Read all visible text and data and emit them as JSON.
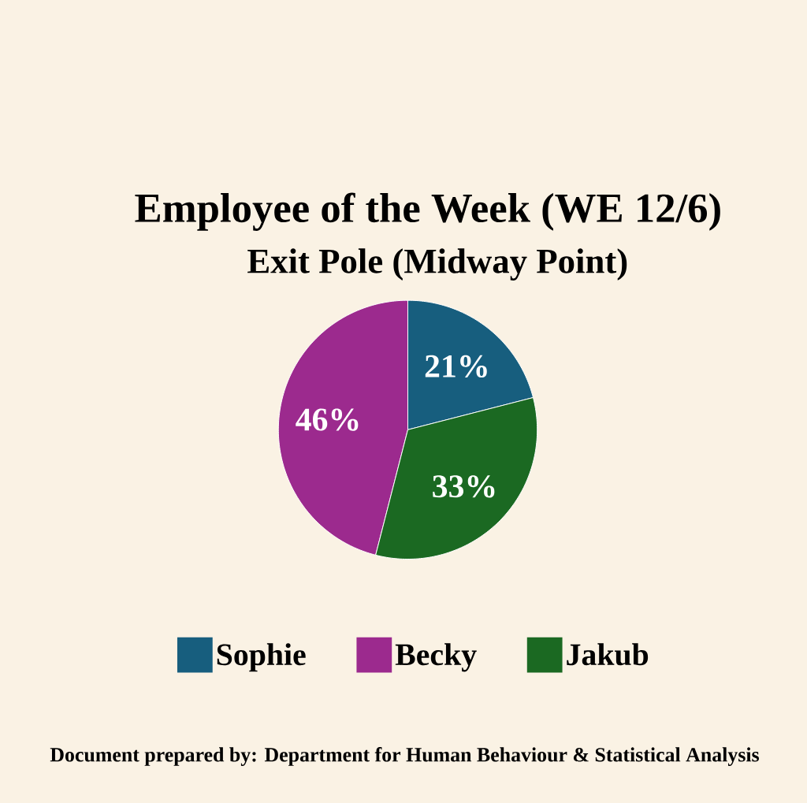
{
  "chart_data": {
    "type": "pie",
    "title": "Employee of the Week (WE 12/6)",
    "subtitle": "Exit Pole (Midway Point)",
    "categories": [
      "Sophie",
      "Becky",
      "Jakub"
    ],
    "values": [
      21,
      46,
      33
    ],
    "colors": [
      "#175e7e",
      "#9c2a8e",
      "#1b6922"
    ],
    "value_labels": [
      "21%",
      "46%",
      "33%"
    ],
    "legend": "bottom",
    "annotations": [
      "Document prepared by: Department for Human Behaviour & Statistical Analysis"
    ]
  }
}
